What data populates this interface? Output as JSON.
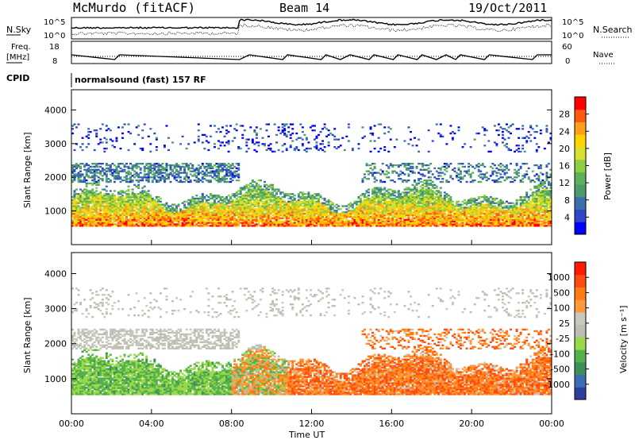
{
  "header": {
    "station": "McMurdo (fitACF)",
    "beam": "Beam 14",
    "date": "19/Oct/2011"
  },
  "summary": {
    "nsky_label": "N.Sky",
    "nsearch_label": "N.Search",
    "freq_label_top": "Freq.",
    "freq_label_bottom": "[MHz]",
    "nave_label": "Nave",
    "cpid_label": "CPID",
    "cpid_text": "normalsound (fast) 157 RF",
    "noise_ticks_left": [
      "10^5",
      "10^0"
    ],
    "noise_ticks_right": [
      "10^5",
      "10^0"
    ],
    "freq_ticks": [
      "18",
      "8"
    ],
    "nave_ticks": [
      "60",
      "0"
    ]
  },
  "chart_data": [
    {
      "type": "heatmap",
      "name": "power",
      "ylabel": "Slant Range [km]",
      "ylim": [
        0,
        4600
      ],
      "yticks": [
        "4000",
        "3000",
        "2000",
        "1000"
      ],
      "colorbar_label": "Power [dB]",
      "colorbar_ticks": [
        "28",
        "24",
        "20",
        "16",
        "12",
        "8",
        "4"
      ],
      "colorbar_colors": [
        "#0000ff",
        "#2e48c8",
        "#3b6fb0",
        "#4d9a6a",
        "#5ab35a",
        "#8fd040",
        "#d8e030",
        "#ffd400",
        "#ff9f1a",
        "#ff5a10",
        "#ff0000"
      ]
    },
    {
      "type": "heatmap",
      "name": "velocity",
      "ylabel": "Slant Range [km]",
      "ylim": [
        0,
        4600
      ],
      "yticks": [
        "4000",
        "3000",
        "2000",
        "1000"
      ],
      "colorbar_label": "Velocity [m s⁻¹]",
      "colorbar_ticks": [
        "1000",
        "500",
        "100",
        "25",
        "-25",
        "-100",
        "-500",
        "-1000"
      ],
      "colorbar_colors": [
        "#2b3f9e",
        "#3a6fb5",
        "#3f8f5a",
        "#55b24a",
        "#9ad94a",
        "#bdbdb0",
        "#c8c8c0",
        "#ff9a3a",
        "#ff7a10",
        "#ff4a10",
        "#ff1a00"
      ]
    }
  ],
  "xaxis": {
    "label": "Time UT",
    "ticks": [
      "00:00",
      "04:00",
      "08:00",
      "12:00",
      "16:00",
      "20:00",
      "00:00"
    ]
  }
}
